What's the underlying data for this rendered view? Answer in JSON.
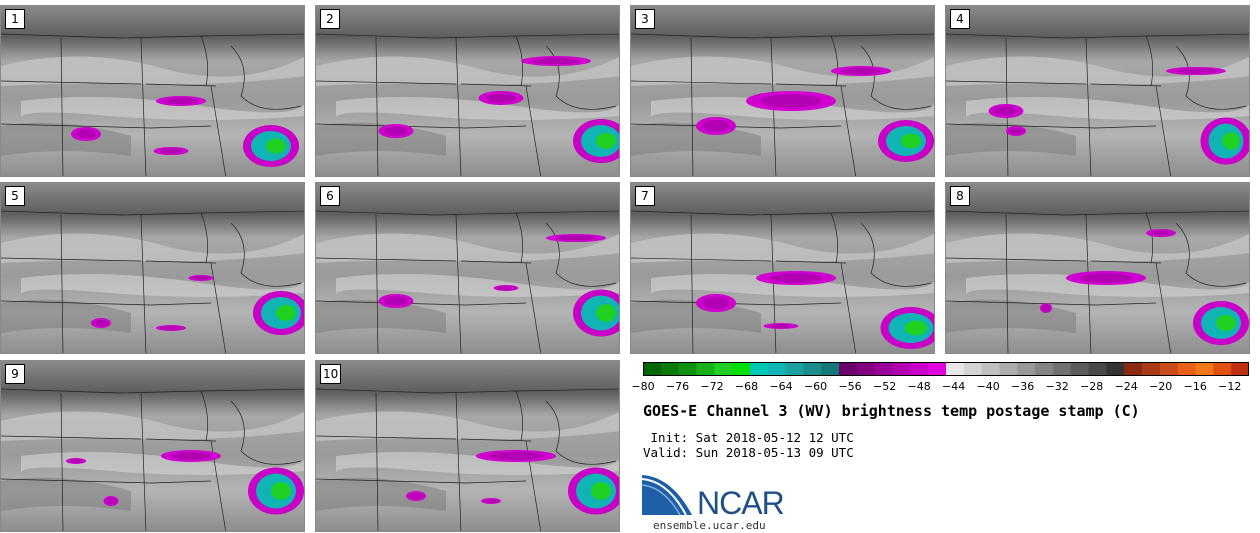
{
  "panels": [
    {
      "label": "1"
    },
    {
      "label": "2"
    },
    {
      "label": "3"
    },
    {
      "label": "4"
    },
    {
      "label": "5"
    },
    {
      "label": "6"
    },
    {
      "label": "7"
    },
    {
      "label": "8"
    },
    {
      "label": "9"
    },
    {
      "label": "10"
    }
  ],
  "colorbar": {
    "ticks": [
      "−80",
      "−76",
      "−72",
      "−68",
      "−64",
      "−60",
      "−56",
      "−52",
      "−48",
      "−44",
      "−40",
      "−36",
      "−32",
      "−28",
      "−24",
      "−20",
      "−16",
      "−12"
    ],
    "colors": [
      "#006400",
      "#0a7a0a",
      "#109010",
      "#18b018",
      "#20d020",
      "#00e000",
      "#00c8b4",
      "#10b4b4",
      "#1aa0a0",
      "#1a8c8c",
      "#157878",
      "#6a006a",
      "#820082",
      "#9a009a",
      "#b000b0",
      "#c800c8",
      "#e000e0",
      "#e8e8e8",
      "#d4d4d4",
      "#c0c0c0",
      "#acacac",
      "#989898",
      "#848484",
      "#707070",
      "#5c5c5c",
      "#484848",
      "#343434",
      "#8b2a10",
      "#a83a14",
      "#c84c18",
      "#e86018",
      "#f07818",
      "#e05010",
      "#c03010"
    ]
  },
  "title": "GOES-E Channel 3 (WV) brightness temp postage stamp (C)",
  "init_line": " Init: Sat 2018-05-12 12 UTC",
  "valid_line": "Valid: Sun 2018-05-13 09 UTC",
  "logo_text": "NCAR",
  "website": "ensemble.ucar.edu"
}
